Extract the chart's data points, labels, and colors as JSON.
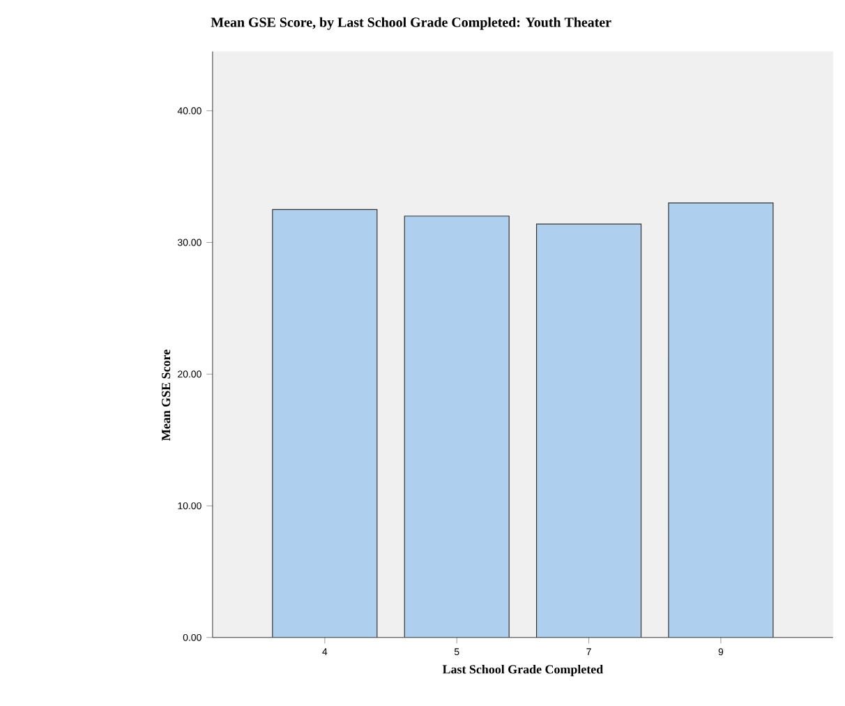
{
  "chart_data": {
    "type": "bar",
    "title": "Mean GSE Score, by Last School Grade Completed: Youth Theater",
    "xlabel": "Last School Grade Completed",
    "ylabel": "Mean GSE Score",
    "categories": [
      "4",
      "5",
      "7",
      "9"
    ],
    "values": [
      32.5,
      32.0,
      31.4,
      33.0
    ],
    "color": "#aecfed",
    "ylim": [
      0,
      44.5
    ],
    "yticks": [
      {
        "value": 0,
        "label": "0.00"
      },
      {
        "value": 10,
        "label": "10.00"
      },
      {
        "value": 20,
        "label": "20.00"
      },
      {
        "value": 30,
        "label": "30.00"
      },
      {
        "value": 40,
        "label": "40.00"
      }
    ],
    "grid": false
  }
}
